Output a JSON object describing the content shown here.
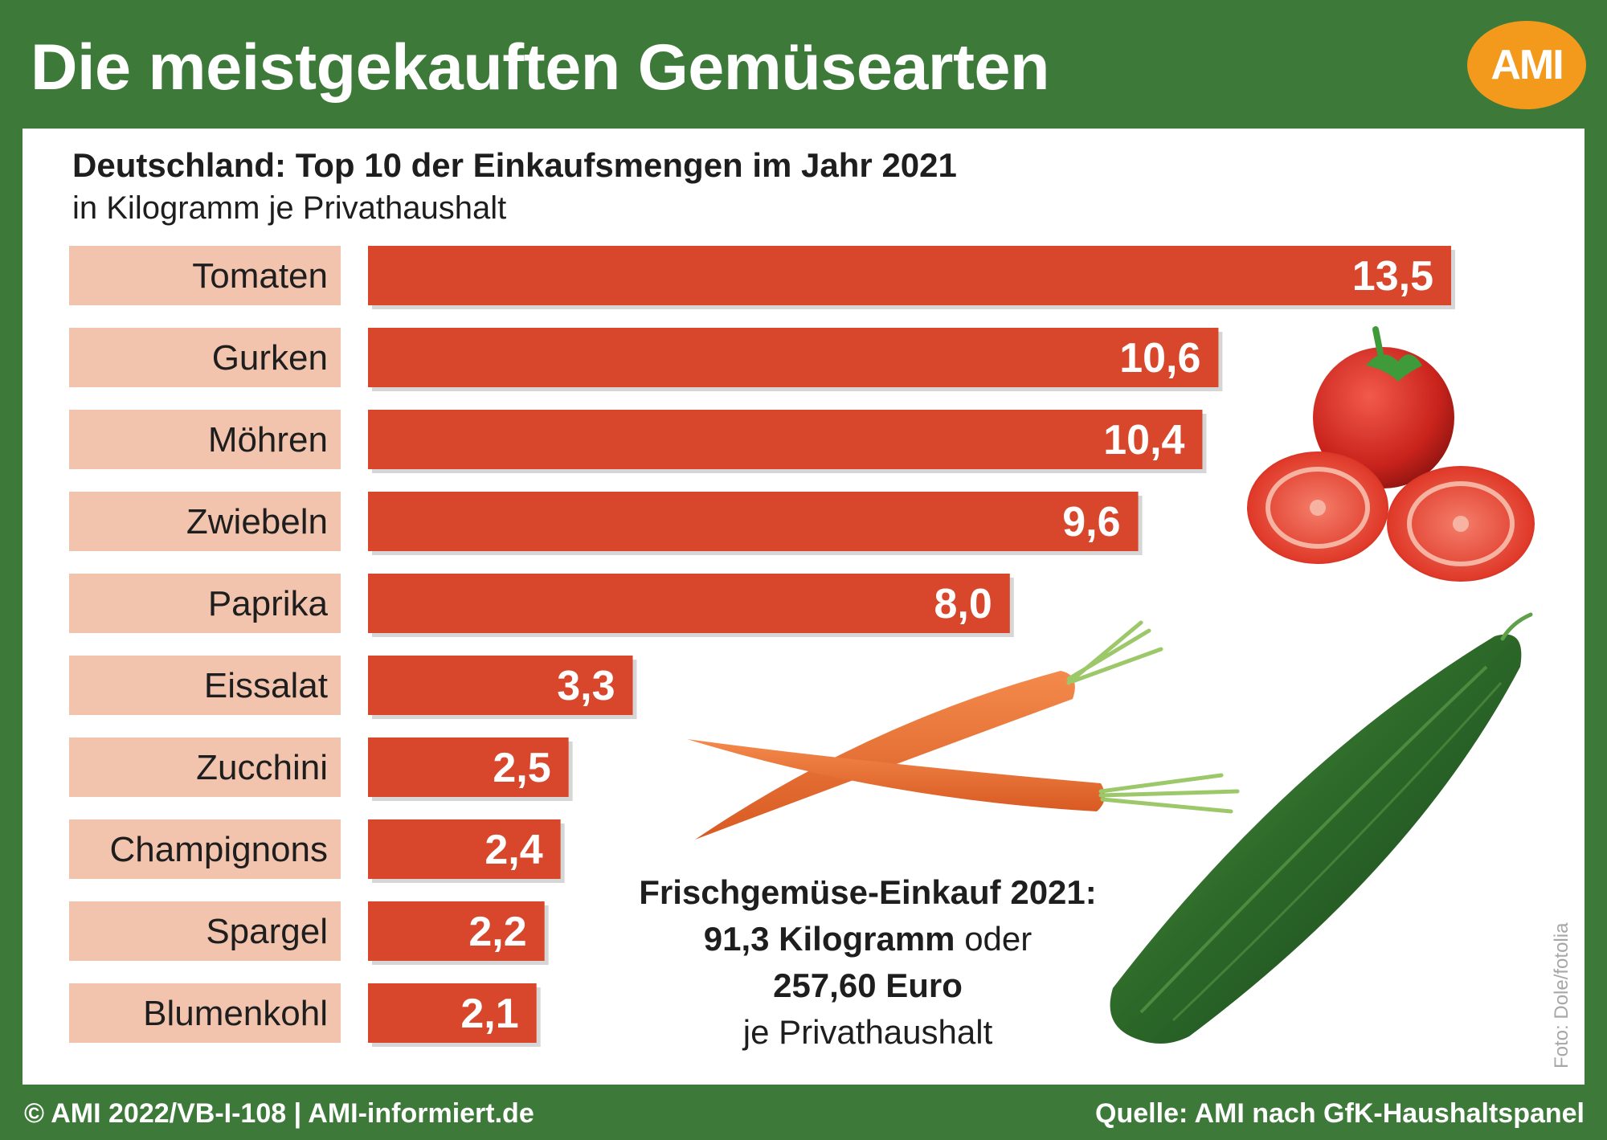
{
  "header": {
    "title": "Die meistgekauften Gemüsearten",
    "logo_text": "AMI"
  },
  "chart_data": {
    "type": "bar",
    "orientation": "horizontal",
    "title": "Deutschland: Top 10 der Einkaufsmengen im Jahr 2021",
    "subtitle": "in Kilogramm je Privathaushalt",
    "categories": [
      "Tomaten",
      "Gurken",
      "Möhren",
      "Zwiebeln",
      "Paprika",
      "Eissalat",
      "Zucchini",
      "Champignons",
      "Spargel",
      "Blumenkohl"
    ],
    "values": [
      13.5,
      10.6,
      10.4,
      9.6,
      8.0,
      3.3,
      2.5,
      2.4,
      2.2,
      2.1
    ],
    "value_labels": [
      "13,5",
      "10,6",
      "10,4",
      "9,6",
      "8,0",
      "3,3",
      "2,5",
      "2,4",
      "2,2",
      "2,1"
    ],
    "xlim": [
      0,
      13.5
    ],
    "grid": false,
    "legend": "none"
  },
  "summary": {
    "line1": "Frischgemüse-Einkauf 2021:",
    "line2_bold": "91,3 Kilogramm",
    "line2_rest": " oder",
    "line3": "257,60 Euro",
    "line4": "je Privathaushalt"
  },
  "photo_credit": "Foto: Dole/fotolia",
  "footer": {
    "left": "© AMI 2022/VB-I-108 | AMI-informiert.de",
    "right": "Quelle: AMI nach GfK-Haushaltspanel"
  },
  "colors": {
    "header_green": "#3d7a3a",
    "bar": "#d8472c",
    "label_box": "#f3c4ad",
    "logo_orange": "#f39a1c"
  },
  "images": [
    "tomato",
    "carrot",
    "cucumber"
  ]
}
